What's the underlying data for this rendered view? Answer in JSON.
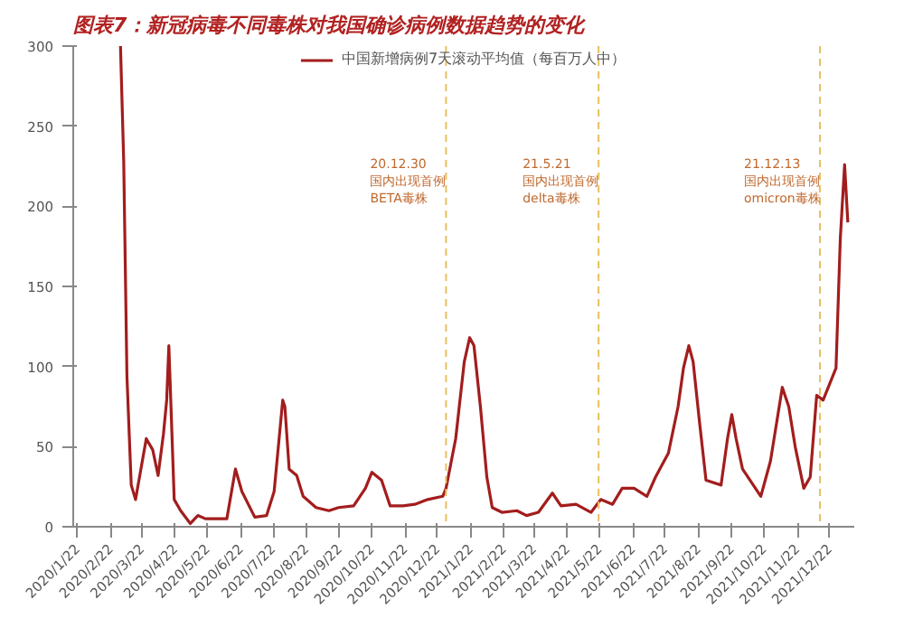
{
  "chart_data": {
    "type": "line",
    "title": "图表7：新冠病毒不同毒株对我国确诊病例数据趋势的变化",
    "x": [
      "2020-03-02",
      "2020-03-05",
      "2020-03-08",
      "2020-03-12",
      "2020-03-16",
      "2020-03-21",
      "2020-03-26",
      "2020-04-01",
      "2020-04-06",
      "2020-04-11",
      "2020-04-14",
      "2020-04-16",
      "2020-04-18",
      "2020-04-21",
      "2020-04-27",
      "2020-05-06",
      "2020-05-13",
      "2020-05-20",
      "2020-06-09",
      "2020-06-17",
      "2020-06-23",
      "2020-07-05",
      "2020-07-16",
      "2020-07-23",
      "2020-07-31",
      "2020-08-02",
      "2020-08-06",
      "2020-08-13",
      "2020-08-19",
      "2020-08-31",
      "2020-09-12",
      "2020-09-21",
      "2020-10-05",
      "2020-10-16",
      "2020-10-22",
      "2020-10-31",
      "2020-11-08",
      "2020-11-20",
      "2020-12-01",
      "2020-12-13",
      "2020-12-27",
      "2020-12-30",
      "2021-01-08",
      "2021-01-16",
      "2021-01-21",
      "2021-01-25",
      "2021-01-31",
      "2021-02-06",
      "2021-02-11",
      "2021-02-20",
      "2021-03-06",
      "2021-03-15",
      "2021-03-26",
      "2021-04-08",
      "2021-04-16",
      "2021-04-30",
      "2021-05-14",
      "2021-05-23",
      "2021-06-03",
      "2021-06-12",
      "2021-06-23",
      "2021-07-05",
      "2021-07-13",
      "2021-07-25",
      "2021-08-03",
      "2021-08-08",
      "2021-08-13",
      "2021-08-17",
      "2021-08-23",
      "2021-08-29",
      "2021-09-12",
      "2021-09-18",
      "2021-09-22",
      "2021-09-26",
      "2021-10-02",
      "2021-10-19",
      "2021-10-28",
      "2021-11-08",
      "2021-11-14",
      "2021-11-20",
      "2021-11-28",
      "2021-12-04",
      "2021-12-10",
      "2021-12-16",
      "2021-12-22",
      "2021-12-28",
      "2022-01-01",
      "2022-01-05",
      "2022-01-08"
    ],
    "series": [
      {
        "name": "中国新增病例7天滚动平均值（每百万人中）",
        "color": "#a31d1d",
        "values": [
          300,
          228,
          94,
          26,
          17,
          36,
          55,
          48,
          32,
          58,
          79,
          113,
          75,
          17,
          10,
          2,
          7,
          5,
          5,
          36,
          22,
          6,
          7,
          22,
          79,
          75,
          36,
          32,
          19,
          12,
          10,
          12,
          13,
          24,
          34,
          29,
          13,
          13,
          14,
          17,
          19,
          24,
          55,
          103,
          118,
          113,
          75,
          31,
          12,
          9,
          10,
          7,
          9,
          21,
          13,
          14,
          9,
          17,
          14,
          24,
          24,
          19,
          31,
          46,
          75,
          99,
          113,
          103,
          65,
          29,
          26,
          55,
          70,
          55,
          36,
          19,
          41,
          87,
          75,
          50,
          24,
          31,
          82,
          79,
          89,
          99,
          180,
          226,
          190
        ]
      }
    ],
    "xlim": [
      "2020-01-18",
      "2022-01-14"
    ],
    "xticks": [
      {
        "value": "2020-01-22",
        "label": "2020/1/22"
      },
      {
        "value": "2020-02-22",
        "label": "2020/2/22"
      },
      {
        "value": "2020-03-22",
        "label": "2020/3/22"
      },
      {
        "value": "2020-04-22",
        "label": "2020/4/22"
      },
      {
        "value": "2020-05-22",
        "label": "2020/5/22"
      },
      {
        "value": "2020-06-22",
        "label": "2020/6/22"
      },
      {
        "value": "2020-07-22",
        "label": "2020/7/22"
      },
      {
        "value": "2020-08-22",
        "label": "2020/8/22"
      },
      {
        "value": "2020-09-22",
        "label": "2020/9/22"
      },
      {
        "value": "2020-10-22",
        "label": "2020/10/22"
      },
      {
        "value": "2020-11-22",
        "label": "2020/11/22"
      },
      {
        "value": "2020-12-22",
        "label": "2020/12/22"
      },
      {
        "value": "2021-01-22",
        "label": "2021/1/22"
      },
      {
        "value": "2021-02-22",
        "label": "2021/2/22"
      },
      {
        "value": "2021-03-22",
        "label": "2021/3/22"
      },
      {
        "value": "2021-04-22",
        "label": "2021/4/22"
      },
      {
        "value": "2021-05-22",
        "label": "2021/5/22"
      },
      {
        "value": "2021-06-22",
        "label": "2021/6/22"
      },
      {
        "value": "2021-07-22",
        "label": "2021/7/22"
      },
      {
        "value": "2021-08-22",
        "label": "2021/8/22"
      },
      {
        "value": "2021-09-22",
        "label": "2021/9/22"
      },
      {
        "value": "2021-10-22",
        "label": "2021/10/22"
      },
      {
        "value": "2021-11-22",
        "label": "2021/11/22"
      },
      {
        "value": "2021-12-22",
        "label": "2021/12/22"
      }
    ],
    "ylim": [
      0,
      300
    ],
    "yticks": [
      0,
      50,
      100,
      150,
      200,
      250,
      300
    ],
    "ref_lines": [
      {
        "axis": "x",
        "value": "2020-12-30",
        "label": "20.12.30\n国内出现首例\nBETA毒株",
        "color": "#e8c060",
        "line_style": "dashed"
      },
      {
        "axis": "x",
        "value": "2021-05-21",
        "label": "21.5.21\n国内出现首例\ndelta毒株",
        "color": "#e8c060",
        "line_style": "dashed"
      },
      {
        "axis": "x",
        "value": "2021-12-13",
        "label": "21.12.13\n国内出现首例\nomicron毒株",
        "color": "#e8c060",
        "line_style": "dashed"
      }
    ],
    "grid": false,
    "legend": "top",
    "marker": "none",
    "line_style": "solid"
  }
}
